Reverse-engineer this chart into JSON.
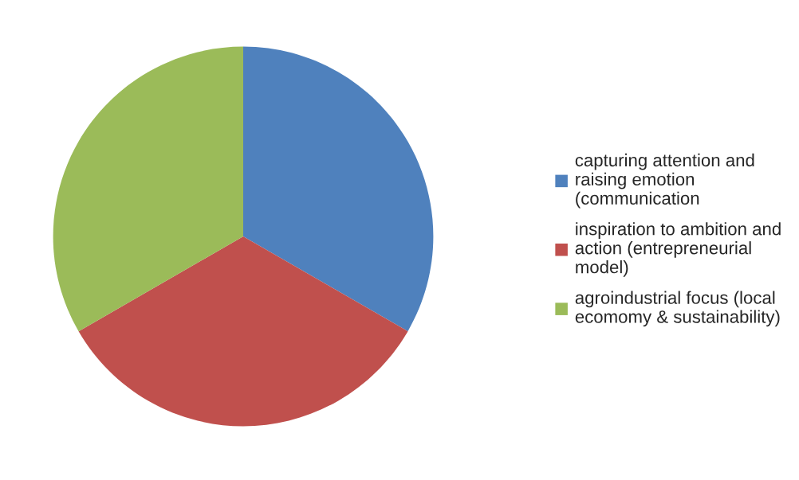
{
  "chart_data": {
    "type": "pie",
    "categories": [
      "capturing attention and\nraising emotion\n(communication",
      "inspiration to ambition and\naction (entrepreneurial\nmodel)",
      "agroindustrial focus (local\necomomy & sustainability)"
    ],
    "values": [
      33.33,
      33.33,
      33.34
    ],
    "colors": [
      "#4f81bd",
      "#c0504d",
      "#9bbb59"
    ],
    "legend": "right"
  }
}
